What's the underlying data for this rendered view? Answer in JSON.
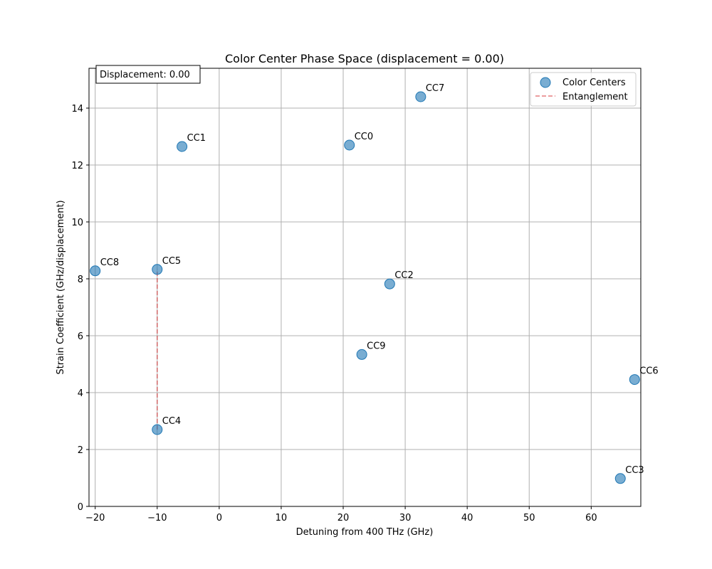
{
  "chart_data": {
    "type": "scatter",
    "title": "Color Center Phase Space (displacement = 0.00)",
    "xlabel": "Detuning from 400 THz (GHz)",
    "ylabel": "Strain Coefficient (GHz/displacement)",
    "xlim": [
      -21,
      68
    ],
    "ylim": [
      0,
      15.4
    ],
    "xticks": [
      -20,
      -10,
      0,
      10,
      20,
      30,
      40,
      50,
      60
    ],
    "yticks": [
      0,
      2,
      4,
      6,
      8,
      10,
      12,
      14
    ],
    "grid": true,
    "legend_position": "top-right",
    "legend": [
      {
        "label": "Color Centers",
        "marker": "circle"
      },
      {
        "label": "Entanglement",
        "marker": "dashed-line"
      }
    ],
    "annotation": "Displacement: 0.00",
    "points": [
      {
        "label": "CC0",
        "x": 21.0,
        "y": 12.7
      },
      {
        "label": "CC1",
        "x": -6.0,
        "y": 12.65
      },
      {
        "label": "CC2",
        "x": 27.5,
        "y": 7.82
      },
      {
        "label": "CC3",
        "x": 64.7,
        "y": 0.98
      },
      {
        "label": "CC4",
        "x": -10.0,
        "y": 2.7
      },
      {
        "label": "CC5",
        "x": -10.0,
        "y": 8.33
      },
      {
        "label": "CC6",
        "x": 67.0,
        "y": 4.46
      },
      {
        "label": "CC7",
        "x": 32.5,
        "y": 14.4
      },
      {
        "label": "CC8",
        "x": -20.0,
        "y": 8.28
      },
      {
        "label": "CC9",
        "x": 23.0,
        "y": 5.34
      }
    ],
    "links": [
      {
        "from": "CC4",
        "to": "CC5"
      }
    ],
    "colors": {
      "marker_fill": "#1f77b4",
      "link": "#d62728",
      "grid": "#b0b0b0"
    }
  }
}
